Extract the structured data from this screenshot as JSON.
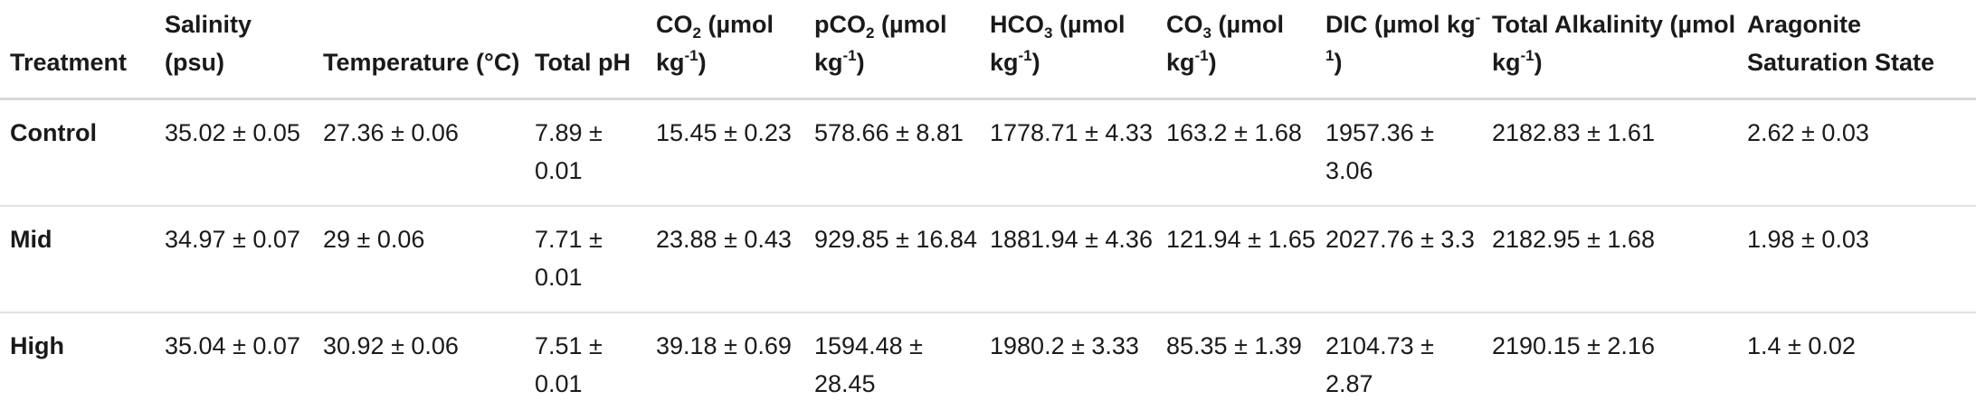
{
  "table": {
    "headers": [
      {
        "main": "Treatment"
      },
      {
        "main": "Salinity (psu)"
      },
      {
        "main": "Temperature (°C)"
      },
      {
        "main": "Total pH"
      },
      {
        "pre": "CO",
        "sub": "2",
        "mid": " (µmol kg",
        "sup": "-1",
        "post": ")"
      },
      {
        "pre": "pCO",
        "sub": "2",
        "mid": " (µmol kg",
        "sup": "-1",
        "post": ")"
      },
      {
        "pre": "HCO",
        "sub": "3",
        "mid": " (µmol kg",
        "sup": "-1",
        "post": ")"
      },
      {
        "pre": "CO",
        "sub": "3",
        "mid": " (µmol kg",
        "sup": "-1",
        "post": ")"
      },
      {
        "pre": "DIC (µmol kg",
        "sup": "-1",
        "post": ")"
      },
      {
        "pre": "Total Alkalinity (µmol kg",
        "sup": "-1",
        "post": ")"
      },
      {
        "main": "Aragonite Saturation State"
      }
    ],
    "rows": [
      [
        "Control",
        "35.02 ± 0.05",
        "27.36 ± 0.06",
        "7.89 ± 0.01",
        "15.45 ± 0.23",
        "578.66 ± 8.81",
        "1778.71 ± 4.33",
        "163.2 ± 1.68",
        "1957.36 ± 3.06",
        "2182.83 ± 1.61",
        "2.62 ± 0.03"
      ],
      [
        "Mid",
        "34.97 ± 0.07",
        "29 ± 0.06",
        "7.71 ± 0.01",
        "23.88 ± 0.43",
        "929.85 ± 16.84",
        "1881.94 ± 4.36",
        "121.94 ± 1.65",
        "2027.76 ± 3.3",
        "2182.95 ± 1.68",
        "1.98 ± 0.03"
      ],
      [
        "High",
        "35.04 ± 0.07",
        "30.92 ± 0.06",
        "7.51 ± 0.01",
        "39.18 ± 0.69",
        "1594.48 ± 28.45",
        "1980.2 ± 3.33",
        "85.35 ± 1.39",
        "2104.73 ± 2.87",
        "2190.15 ± 2.16",
        "1.4 ± 0.02"
      ]
    ]
  }
}
